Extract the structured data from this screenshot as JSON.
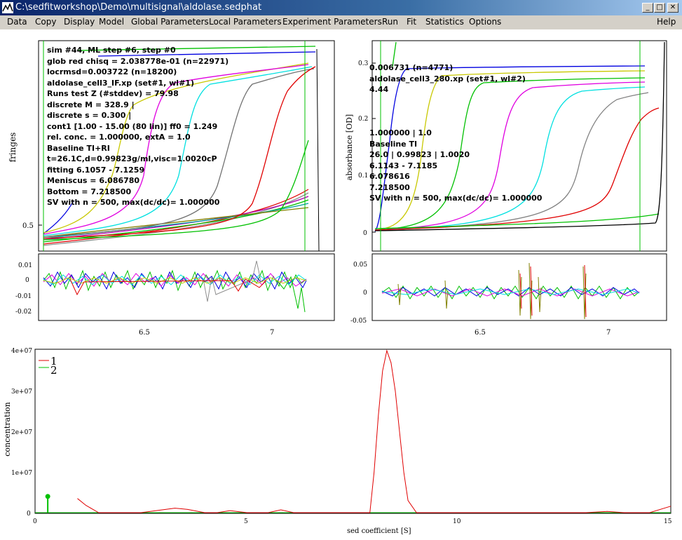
{
  "window": {
    "title": "C:\\sedfitworkshop\\Demo\\multisignal\\aldolase.sedphat",
    "minimize_glyph": "_",
    "maximize_glyph": "□",
    "close_glyph": "✕"
  },
  "menu": [
    "Data",
    "Copy",
    "Display",
    "Model",
    "Global Parameters",
    "Local Parameters",
    "Experiment Parameters",
    "Run",
    "Fit",
    "Statistics",
    "Options",
    "Help"
  ],
  "left_panel": {
    "ylabel": "fringes",
    "ytick": "0.5",
    "resid_ticks": [
      "0.01",
      "0",
      "-0.01",
      "-0.02"
    ],
    "xticks": [
      "6.5",
      "7"
    ],
    "annotations": [
      "sim #44, ML step #6, step #0",
      "glob red chisq = 2.038778e-01 (n=22971)",
      "locrmsd=0.003722 (n=18200)",
      "aldolase_cell3_IF.xp (set#1, wl#1)",
      "Runs test Z (#stddev) = 79.98",
      "discrete M = 328.9 |",
      "discrete s = 0.300 |",
      "cont1 [1.00 - 15.00 (80  lin)] ff0 = 1.249",
      "rel. conc. = 1.000000, extA = 1.0",
      "Baseline TI+RI",
      "t=26.1C,d=0.99823g/ml,visc=1.0020cP",
      "fitting 6.1057 - 7.1259",
      "Meniscus = 6.086780",
      "Bottom = 7.218500",
      "SV with n = 500, max(dc/dc)= 1.000000"
    ]
  },
  "right_panel": {
    "ylabel": "absorbance [OD]",
    "yticks": [
      "0.3",
      "0.2",
      "0.1",
      "0"
    ],
    "resid_ticks": [
      "0.05",
      "0",
      "-0.05"
    ],
    "xticks": [
      "6.5",
      "7"
    ],
    "annotations": [
      "0.006731 (n=4771)",
      "aldolase_cell3_280.xp (set#1, wl#2)",
      "4.44",
      "",
      "",
      "",
      "1.000000 | 1.0",
      "Baseline TI",
      "26.0 | 0.99823 | 1.0020",
      "6.1143 - 7.1185",
      "6.078616",
      "7.218500",
      "SV with n = 500, max(dc/dc)= 1.000000"
    ]
  },
  "distribution": {
    "ylabel": "concentration",
    "xlabel": "sed coefficient [S]",
    "yticks": [
      "4e+07",
      "3e+07",
      "2e+07",
      "1e+07",
      "0"
    ],
    "xticks": [
      "0",
      "5",
      "10",
      "15"
    ],
    "legend": [
      "1",
      "2"
    ],
    "colors": {
      "series1": "#e00000",
      "series2": "#00c000"
    }
  },
  "chart_data": [
    {
      "type": "line",
      "title": "",
      "xlabel": "sed coefficient [S]",
      "ylabel": "concentration",
      "xlim": [
        0,
        15
      ],
      "ylim": [
        0,
        40000000
      ],
      "series": [
        {
          "name": "1",
          "x": [
            1.0,
            1.2,
            1.5,
            2.0,
            2.5,
            3.0,
            3.3,
            3.6,
            4.0,
            4.3,
            4.6,
            5.0,
            5.5,
            5.8,
            6.1,
            6.5,
            7.0,
            7.5,
            7.9,
            8.0,
            8.1,
            8.2,
            8.3,
            8.4,
            8.5,
            8.6,
            8.7,
            8.8,
            9.0,
            9.2,
            10,
            11,
            12,
            13,
            13.5,
            13.9,
            14.5,
            15.0
          ],
          "y": [
            3500000,
            1800000,
            0,
            0,
            0,
            700000,
            1100000,
            800000,
            0,
            0,
            500000,
            0,
            0,
            700000,
            0,
            0,
            0,
            0,
            0,
            10000000,
            24000000,
            35000000,
            40000000,
            37000000,
            30000000,
            20000000,
            10000000,
            3000000,
            0,
            0,
            0,
            0,
            0,
            0,
            300000,
            0,
            0,
            1600000
          ]
        },
        {
          "name": "2",
          "x": [
            0.3,
            1.0,
            5.0,
            10.0,
            15.0
          ],
          "y": [
            4000000,
            0,
            0,
            0,
            0
          ]
        }
      ]
    }
  ]
}
